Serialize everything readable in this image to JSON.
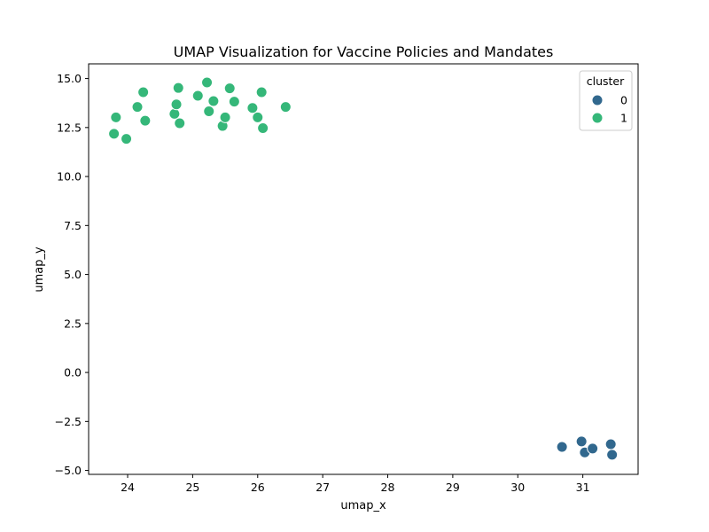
{
  "chart_data": {
    "type": "scatter",
    "title": "UMAP Visualization for Vaccine Policies and Mandates",
    "xlabel": "umap_x",
    "ylabel": "umap_y",
    "xlim": [
      23.4,
      31.85
    ],
    "ylim": [
      -5.2,
      15.75
    ],
    "xticks": [
      24,
      25,
      26,
      27,
      28,
      29,
      30,
      31
    ],
    "yticks": [
      -5.0,
      -2.5,
      0.0,
      2.5,
      5.0,
      7.5,
      10.0,
      12.5,
      15.0
    ],
    "ytick_labels": [
      "−5.0",
      "−2.5",
      "0.0",
      "2.5",
      "5.0",
      "7.5",
      "10.0",
      "12.5",
      "15.0"
    ],
    "grid": false,
    "legend": {
      "title": "cluster",
      "placement": "top-right",
      "entries": [
        {
          "label": "0",
          "color": "#31688e"
        },
        {
          "label": "1",
          "color": "#35b779"
        }
      ]
    },
    "series": [
      {
        "name": "0",
        "color": "#31688e",
        "points": [
          [
            30.68,
            -3.8
          ],
          [
            30.98,
            -3.52
          ],
          [
            31.03,
            -4.08
          ],
          [
            31.15,
            -3.88
          ],
          [
            31.43,
            -3.66
          ],
          [
            31.45,
            -4.2
          ]
        ]
      },
      {
        "name": "1",
        "color": "#35b779",
        "points": [
          [
            23.79,
            12.18
          ],
          [
            23.82,
            13.02
          ],
          [
            23.98,
            11.92
          ],
          [
            24.15,
            13.55
          ],
          [
            24.24,
            14.3
          ],
          [
            24.27,
            12.85
          ],
          [
            24.72,
            13.2
          ],
          [
            24.75,
            13.68
          ],
          [
            24.78,
            14.52
          ],
          [
            24.8,
            12.72
          ],
          [
            25.08,
            14.12
          ],
          [
            25.22,
            14.8
          ],
          [
            25.25,
            13.33
          ],
          [
            25.32,
            13.85
          ],
          [
            25.46,
            12.58
          ],
          [
            25.5,
            13.02
          ],
          [
            25.57,
            14.5
          ],
          [
            25.64,
            13.82
          ],
          [
            25.92,
            13.5
          ],
          [
            26.0,
            13.02
          ],
          [
            26.06,
            14.3
          ],
          [
            26.08,
            12.47
          ],
          [
            26.43,
            13.55
          ]
        ]
      }
    ]
  }
}
